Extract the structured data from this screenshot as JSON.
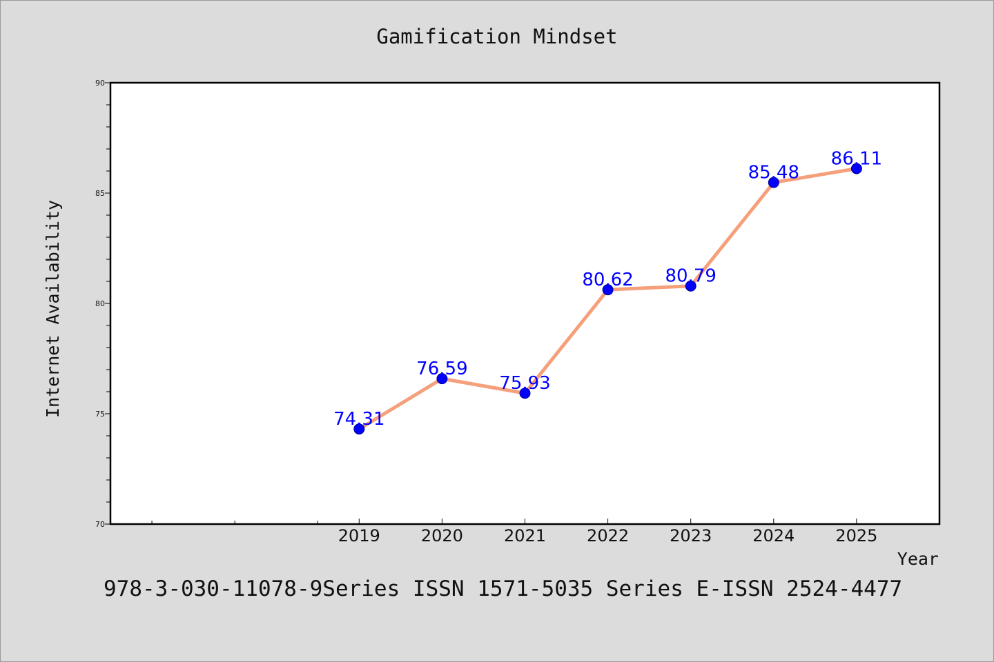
{
  "chart_data": {
    "type": "line",
    "title": "Gamification Mindset",
    "xlabel": "Year",
    "ylabel": "Internet Availability",
    "x": [
      "2019",
      "2020",
      "2021",
      "2022",
      "2023",
      "2024",
      "2025"
    ],
    "series": [
      {
        "values": [
          74.31,
          76.59,
          75.93,
          80.62,
          80.79,
          85.48,
          86.11
        ]
      }
    ],
    "data_labels": [
      "74.31",
      "76.59",
      "75.93",
      "80.62",
      "80.79",
      "85.48",
      "86.11"
    ],
    "ylim": [
      70,
      90
    ],
    "xlim_index": [
      -3.0,
      7.0
    ],
    "yticks": [
      "70",
      "75",
      "80",
      "85",
      "90"
    ],
    "ytick_values": [
      70,
      75,
      80,
      85,
      90
    ],
    "y_minor_step": 1,
    "x_minor_ticks": [
      -2.5,
      -1.5,
      -0.5
    ],
    "grid": false,
    "legend": "none",
    "colors": {
      "background": "#dcdcdc",
      "plot_area": "#ffffff",
      "line": "#f5a07a",
      "marker": "#0000ff",
      "data_label": "#0000ff",
      "axes": "#000000"
    }
  },
  "footer": "978-3-030-11078-9Series ISSN 1571-5035 Series E-ISSN 2524-4477"
}
